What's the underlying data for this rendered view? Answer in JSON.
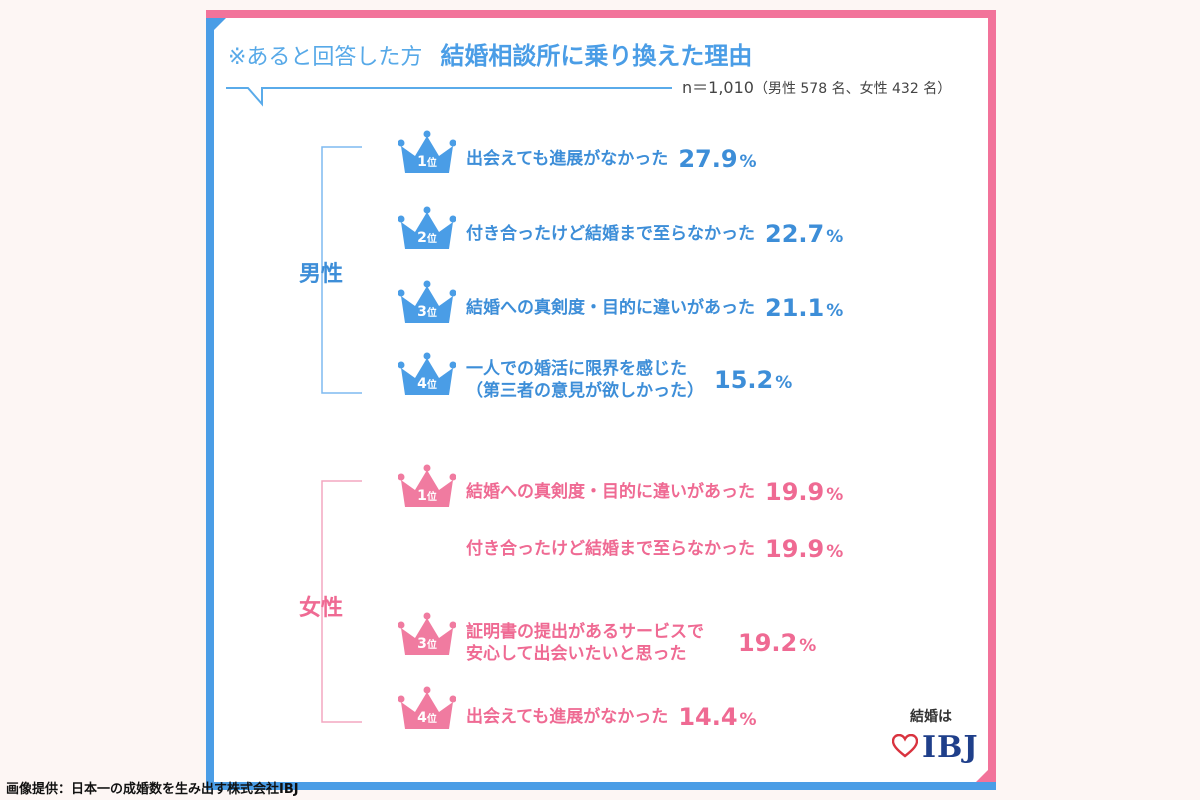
{
  "header": {
    "title_prefix": "※あると回答した方",
    "title": "結婚相談所に乗り換えた理由",
    "sample_main": "n＝1,010",
    "sample_note": "（男性 578 名、女性 432 名）"
  },
  "colors": {
    "male": "#3d8ed8",
    "female": "#ef6a93",
    "frame_blue": "#4a9de6",
    "frame_pink": "#f2739a"
  },
  "chart_data": {
    "type": "table",
    "title": "結婚相談所に乗り換えた理由",
    "groups": [
      {
        "name": "男性",
        "items": [
          {
            "rank": "1",
            "rank_unit": "位",
            "reason": "出会えても進展がなかった",
            "value": 27.9,
            "value_label": "27.9",
            "unit": "%"
          },
          {
            "rank": "2",
            "rank_unit": "位",
            "reason": "付き合ったけど結婚まで至らなかった",
            "value": 22.7,
            "value_label": "22.7",
            "unit": "%"
          },
          {
            "rank": "3",
            "rank_unit": "位",
            "reason": "結婚への真剣度・目的に違いがあった",
            "value": 21.1,
            "value_label": "21.1",
            "unit": "%"
          },
          {
            "rank": "4",
            "rank_unit": "位",
            "reason_line1": "一人での婚活に限界を感じた",
            "reason_line2": "（第三者の意見が欲しかった）",
            "value": 15.2,
            "value_label": "15.2",
            "unit": "%"
          }
        ]
      },
      {
        "name": "女性",
        "items": [
          {
            "rank": "1",
            "rank_unit": "位",
            "reason": "結婚への真剣度・目的に違いがあった",
            "value": 19.9,
            "value_label": "19.9",
            "unit": "%"
          },
          {
            "reason": "付き合ったけど結婚まで至らなかった",
            "value": 19.9,
            "value_label": "19.9",
            "unit": "%"
          },
          {
            "rank": "3",
            "rank_unit": "位",
            "reason_line1": "証明書の提出があるサービスで",
            "reason_line2": "安心して出会いたいと思った",
            "value": 19.2,
            "value_label": "19.2",
            "unit": "%"
          },
          {
            "rank": "4",
            "rank_unit": "位",
            "reason": "出会えても進展がなかった",
            "value": 14.4,
            "value_label": "14.4",
            "unit": "%"
          }
        ]
      }
    ]
  },
  "logo": {
    "tagline": "結婚は",
    "brand": "IBJ"
  },
  "credit": "画像提供：日本一の成婚数を生み出す株式会社IBJ"
}
